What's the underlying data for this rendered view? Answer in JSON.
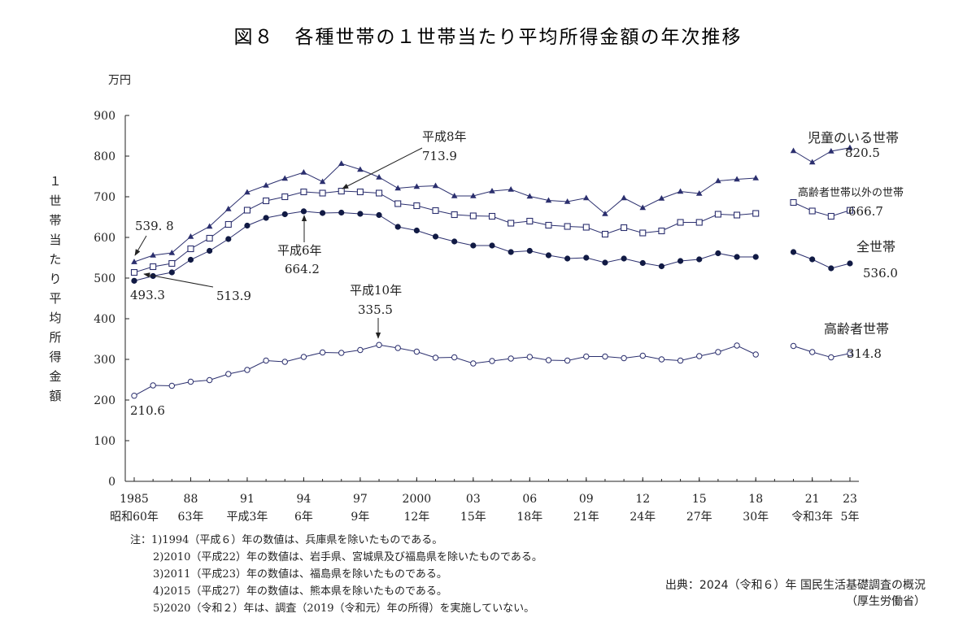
{
  "title": "図８　各種世帯の１世帯当たり平均所得金額の年次推移",
  "y_unit": "万円",
  "y_axis_title": "１世帯当たり平均所得金額",
  "x_ticks": [
    {
      "year": 1985,
      "top": "1985",
      "bottom": "昭和60年"
    },
    {
      "year": 1988,
      "top": "88",
      "bottom": "63年"
    },
    {
      "year": 1991,
      "top": "91",
      "bottom": "平成3年"
    },
    {
      "year": 1994,
      "top": "94",
      "bottom": "6年"
    },
    {
      "year": 1997,
      "top": "97",
      "bottom": "9年"
    },
    {
      "year": 2000,
      "top": "2000",
      "bottom": "12年"
    },
    {
      "year": 2003,
      "top": "03",
      "bottom": "15年"
    },
    {
      "year": 2006,
      "top": "06",
      "bottom": "18年"
    },
    {
      "year": 2009,
      "top": "09",
      "bottom": "21年"
    },
    {
      "year": 2012,
      "top": "12",
      "bottom": "24年"
    },
    {
      "year": 2015,
      "top": "15",
      "bottom": "27年"
    },
    {
      "year": 2018,
      "top": "18",
      "bottom": "30年"
    },
    {
      "year": 2021,
      "top": "21",
      "bottom": "令和3年"
    },
    {
      "year": 2023,
      "top": "23",
      "bottom": "5年"
    }
  ],
  "chart_data": {
    "type": "line",
    "ylim": [
      0,
      900
    ],
    "yticks": [
      0,
      100,
      200,
      300,
      400,
      500,
      600,
      700,
      800,
      900
    ],
    "xlim": [
      1985,
      2023
    ],
    "gap_year": 2019,
    "series": [
      {
        "name": "児童のいる世帯",
        "marker": "triangle",
        "end_label": "820.5",
        "x": [
          1985,
          1986,
          1987,
          1988,
          1989,
          1990,
          1991,
          1992,
          1993,
          1994,
          1995,
          1996,
          1997,
          1998,
          1999,
          2000,
          2001,
          2002,
          2003,
          2004,
          2005,
          2006,
          2007,
          2008,
          2009,
          2010,
          2011,
          2012,
          2013,
          2014,
          2015,
          2016,
          2017,
          2018,
          2020,
          2021,
          2022,
          2023
        ],
        "values": [
          539.8,
          556,
          562,
          602,
          627,
          670,
          711,
          728,
          745,
          760,
          737,
          781.6,
          767,
          748,
          721,
          725,
          727,
          702,
          702,
          714,
          718,
          701,
          691,
          688,
          697,
          658,
          697,
          673,
          696,
          713,
          708,
          739,
          743,
          746,
          813,
          785,
          812,
          820.5
        ]
      },
      {
        "name": "高齢者世帯以外の世帯",
        "marker": "square",
        "end_label": "666.7",
        "x": [
          1985,
          1986,
          1987,
          1988,
          1989,
          1990,
          1991,
          1992,
          1993,
          1994,
          1995,
          1996,
          1997,
          1998,
          1999,
          2000,
          2001,
          2002,
          2003,
          2004,
          2005,
          2006,
          2007,
          2008,
          2009,
          2010,
          2011,
          2012,
          2013,
          2014,
          2015,
          2016,
          2017,
          2018,
          2020,
          2021,
          2022,
          2023
        ],
        "values": [
          513.9,
          528,
          536,
          572,
          598,
          632,
          667,
          690,
          700,
          712,
          709,
          713.9,
          712,
          709,
          683,
          678,
          666,
          656,
          653,
          652,
          635,
          640,
          630,
          627,
          625,
          608,
          624,
          611,
          616,
          637,
          637,
          657,
          655,
          659,
          686,
          665,
          652,
          666.7
        ]
      },
      {
        "name": "全世帯",
        "marker": "dot",
        "end_label": "536.0",
        "x": [
          1985,
          1986,
          1987,
          1988,
          1989,
          1990,
          1991,
          1992,
          1993,
          1994,
          1995,
          1996,
          1997,
          1998,
          1999,
          2000,
          2001,
          2002,
          2003,
          2004,
          2005,
          2006,
          2007,
          2008,
          2009,
          2010,
          2011,
          2012,
          2013,
          2014,
          2015,
          2016,
          2017,
          2018,
          2020,
          2021,
          2022,
          2023
        ],
        "values": [
          493.3,
          505,
          514,
          545,
          567,
          596,
          629,
          648,
          657,
          664.2,
          660,
          661,
          658,
          655,
          626,
          617,
          602,
          590,
          580,
          580,
          564,
          567,
          556,
          548,
          550,
          538,
          548,
          537,
          529,
          542,
          546,
          561,
          552,
          552,
          564,
          546,
          524,
          536.0
        ]
      },
      {
        "name": "高齢者世帯",
        "marker": "circle",
        "end_label": "314.8",
        "x": [
          1985,
          1986,
          1987,
          1988,
          1989,
          1990,
          1991,
          1992,
          1993,
          1994,
          1995,
          1996,
          1997,
          1998,
          1999,
          2000,
          2001,
          2002,
          2003,
          2004,
          2005,
          2006,
          2007,
          2008,
          2009,
          2010,
          2011,
          2012,
          2013,
          2014,
          2015,
          2016,
          2017,
          2018,
          2020,
          2021,
          2022,
          2023
        ],
        "values": [
          210.6,
          236,
          235,
          245,
          249,
          264,
          274,
          297,
          294,
          306,
          317,
          316,
          323,
          335.5,
          328,
          319,
          304,
          305,
          290,
          296,
          302,
          306,
          298,
          297,
          307,
          307,
          303,
          309,
          300,
          297,
          308,
          318,
          334,
          312,
          333,
          318,
          305,
          314.8
        ]
      }
    ],
    "annotations": [
      {
        "label": "平成8年",
        "value": "713.9"
      },
      {
        "label": "平成6年",
        "value": "664.2"
      },
      {
        "label": "平成10年",
        "value": "335.5"
      },
      {
        "label": "539. 8"
      },
      {
        "label": "493.3"
      },
      {
        "label": "513.9"
      },
      {
        "label": "210.6"
      }
    ]
  },
  "notes": [
    "注：1)1994（平成６）年の数値は、兵庫県を除いたものである。",
    "2)2010（平成22）年の数値は、岩手県、宮城県及び福島県を除いたものである。",
    "3)2011（平成23）年の数値は、福島県を除いたものである。",
    "4)2015（平成27）年の数値は、熊本県を除いたものである。",
    "5)2020（令和２）年は、調査（2019（令和元）年の所得）を実施していない。"
  ],
  "source": {
    "line1": "出典：2024（令和６）年 国民生活基礎調査の概況",
    "line2": "（厚生労働省）"
  }
}
